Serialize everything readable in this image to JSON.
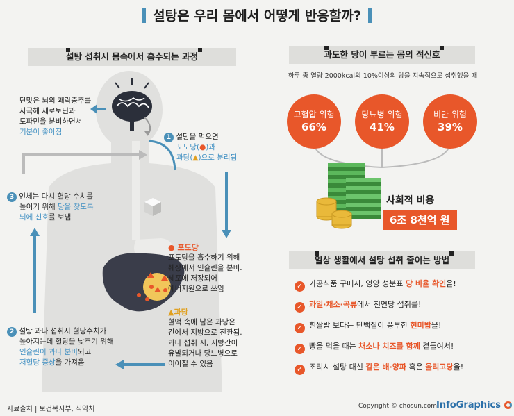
{
  "title": "설탕은 우리 몸에서 어떻게 반응할까?",
  "left_section": {
    "heading": "설탕 섭취시 몸속에서 흡수되는 과정",
    "brain_text": [
      "단맛은 뇌의 쾌락중추를",
      "자극해 세로토닌과",
      "도파민을 분비하면서"
    ],
    "brain_text_blue": "기분이 좋아짐",
    "step1": {
      "num": "1",
      "line1": "설탕을 먹으면",
      "line2_a": "포도당(",
      "line2_b": "●",
      "line2_c": ")과",
      "line3_a": "과당(",
      "line3_b": "▲",
      "line3_c": ")으로 분리됨"
    },
    "step3": {
      "num": "3",
      "line1": "인체는 다시 혈당 수치를",
      "line2_a": "높이기 위해",
      "line2_b": " 당을 찾도록",
      "line3_a": "뇌에 신호",
      "line3_b": "를 보냄"
    },
    "glucose": {
      "marker": "●",
      "label": "포도당",
      "lines": [
        "포도당을 흡수하기 위해",
        "췌장에서 인슐린을 분비.",
        "세포에 저장되어",
        "에너지원으로 쓰임"
      ]
    },
    "fructose": {
      "marker": "▲",
      "label": "과당",
      "lines": [
        "혈액 속에 남은 과당은",
        "간에서 지방으로 전환됨.",
        "과다 섭취 시, 지방간이",
        "유발되거나 당뇨병으로",
        "이어질 수 있음"
      ]
    },
    "step2": {
      "num": "2",
      "line1": "설탕 과다 섭취시 혈당수치가",
      "line2": "높아지는데 혈당을 낮추기 위해",
      "line3_a": "인슐린이 과다 분비",
      "line3_b": "되고",
      "line4_a": "저혈당 증상",
      "line4_b": "을 가져옴"
    }
  },
  "risk_section": {
    "heading": "과도한 당이 부르는 몸의 적신호",
    "subtitle": "하루 총 열량 2000kcal의 10%이상의 당을 지속적으로 섭취했을 때",
    "risks": [
      {
        "label": "고혈압 위험",
        "value": "66%"
      },
      {
        "label": "당뇨병 위험",
        "value": "41%"
      },
      {
        "label": "비만 위험",
        "value": "39%"
      }
    ],
    "cost_label": "사회적 비용",
    "cost_value": "6조 8천억 원"
  },
  "tips_section": {
    "heading": "일상 생활에서 설탕 섭취 줄이는 방법",
    "tips": [
      {
        "pre": "가공식품 구매시, 영양 성분표 ",
        "hl": "당 비율 확인",
        "post": "을!"
      },
      {
        "pre": "",
        "hl": "과일·채소·곡류",
        "post": "에서 천연당 섭취를!"
      },
      {
        "pre": "흰쌀밥 보다는 단백질이 풍부한 ",
        "hl": "현미밥",
        "post": "을!"
      },
      {
        "pre": "빵을 먹을 때는 ",
        "hl": "채소나 치즈를 함께",
        "post": " 곁들여서!"
      },
      {
        "pre": "조리시 설탕 대신 ",
        "hl": "갈은 배·양파",
        "post": " 혹은 ",
        "hl2": "올리고당",
        "post2": "을!"
      }
    ]
  },
  "footer": {
    "source": "자료출처 | 보건복지부, 식약처",
    "copyright": "Copyright © chosun.com",
    "brand": "InfoGraphics"
  },
  "colors": {
    "accent_orange": "#e8572a",
    "accent_blue": "#3f8fc2",
    "body_gray": "#e0e0de"
  }
}
